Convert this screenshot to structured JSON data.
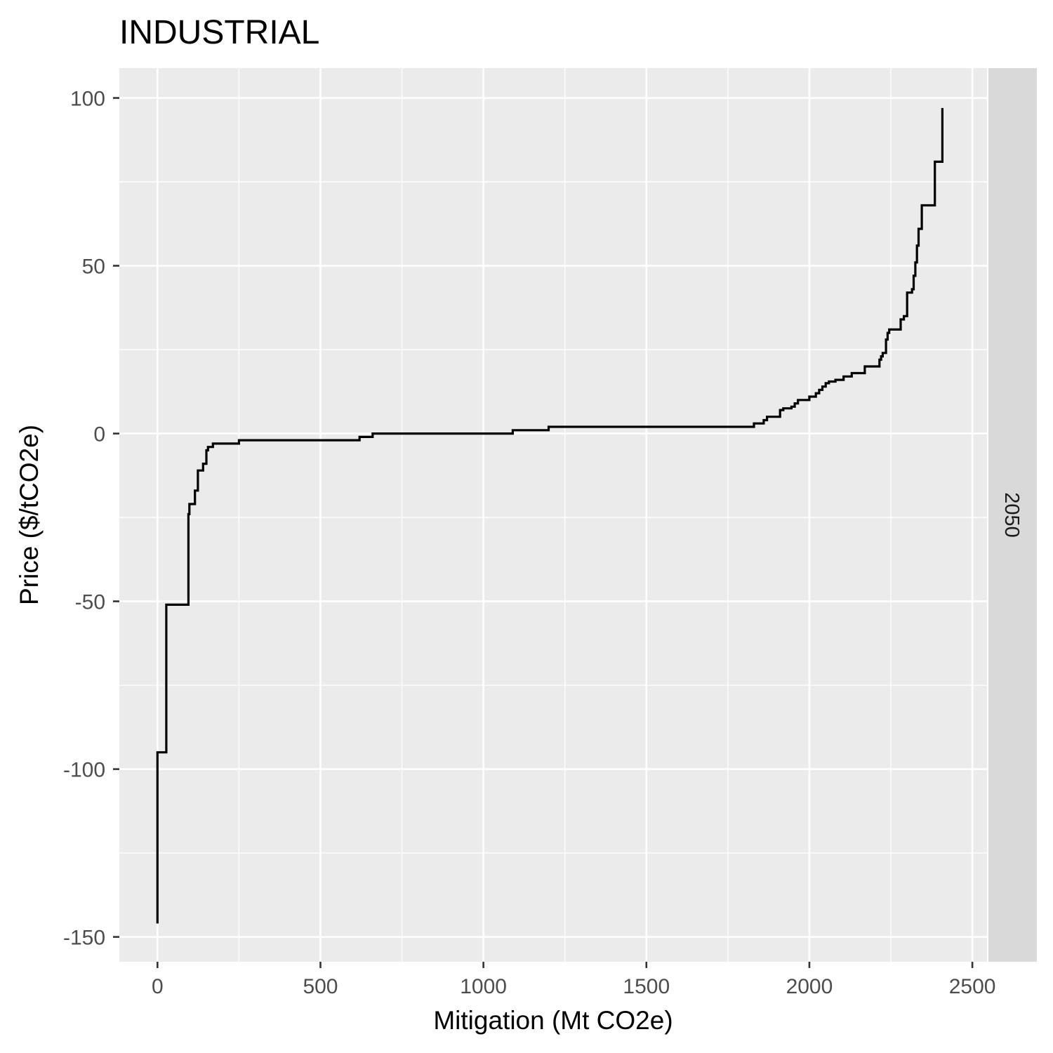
{
  "chart_data": {
    "type": "line",
    "title": "INDUSTRIAL",
    "xlabel": "Mitigation (Mt CO2e)",
    "ylabel": "Price ($/tCO2e)",
    "facet_label": "2050",
    "xlim": [
      -117,
      2545
    ],
    "ylim": [
      -157.4,
      108.9
    ],
    "x_ticks": [
      0,
      500,
      1000,
      1500,
      2000,
      2500
    ],
    "x_tick_labels": [
      "0",
      "500",
      "1000",
      "1500",
      "2000",
      "2500"
    ],
    "y_ticks": [
      -150,
      -100,
      -50,
      0,
      50,
      100
    ],
    "y_tick_labels": [
      "-150",
      "-100",
      "-50",
      "0",
      "50",
      "100"
    ],
    "grid": true,
    "series": [
      {
        "step": true,
        "x": [
          0,
          0,
          27,
          95,
          95,
          98,
          115,
          124,
          140,
          150,
          155,
          170,
          250,
          620,
          660,
          1090,
          1200,
          1830,
          1860,
          1870,
          1910,
          1920,
          1945,
          1955,
          1965,
          2000,
          2020,
          2030,
          2040,
          2050,
          2060,
          2080,
          2105,
          2130,
          2170,
          2200,
          2215,
          2220,
          2225,
          2235,
          2240,
          2245,
          2250,
          2280,
          2290,
          2300,
          2315,
          2320,
          2325,
          2330,
          2335,
          2345,
          2385,
          2408
        ],
        "y": [
          -146,
          -95,
          -51,
          -26,
          -24,
          -21,
          -17,
          -11,
          -9,
          -5,
          -4,
          -3,
          -2,
          -1,
          0,
          1,
          2,
          3,
          4,
          5,
          7,
          7.5,
          8,
          9,
          10,
          11,
          12,
          13,
          14,
          15,
          15.5,
          16,
          17,
          18,
          20,
          20,
          22,
          23,
          24,
          28,
          30,
          31,
          31,
          34,
          35,
          42,
          43,
          47,
          51,
          56,
          61,
          68,
          81,
          97
        ]
      }
    ]
  }
}
